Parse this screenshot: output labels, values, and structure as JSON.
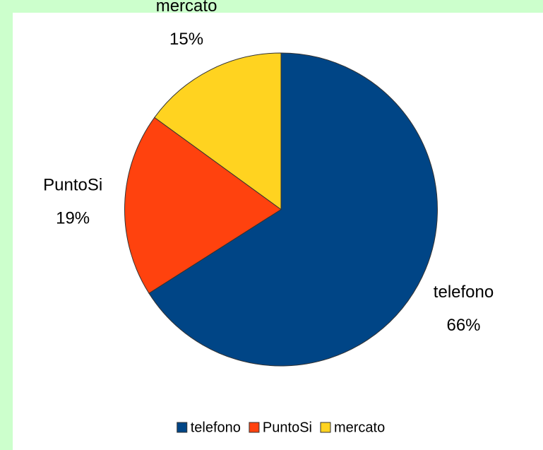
{
  "chart_data": {
    "type": "pie",
    "categories": [
      "telefono",
      "PuntoSi",
      "mercato"
    ],
    "values": [
      66,
      19,
      15
    ],
    "value_labels": [
      "66%",
      "19%",
      "15%"
    ],
    "colors": [
      "#004586",
      "#ff420e",
      "#ffd320"
    ],
    "legend": "bottom"
  }
}
